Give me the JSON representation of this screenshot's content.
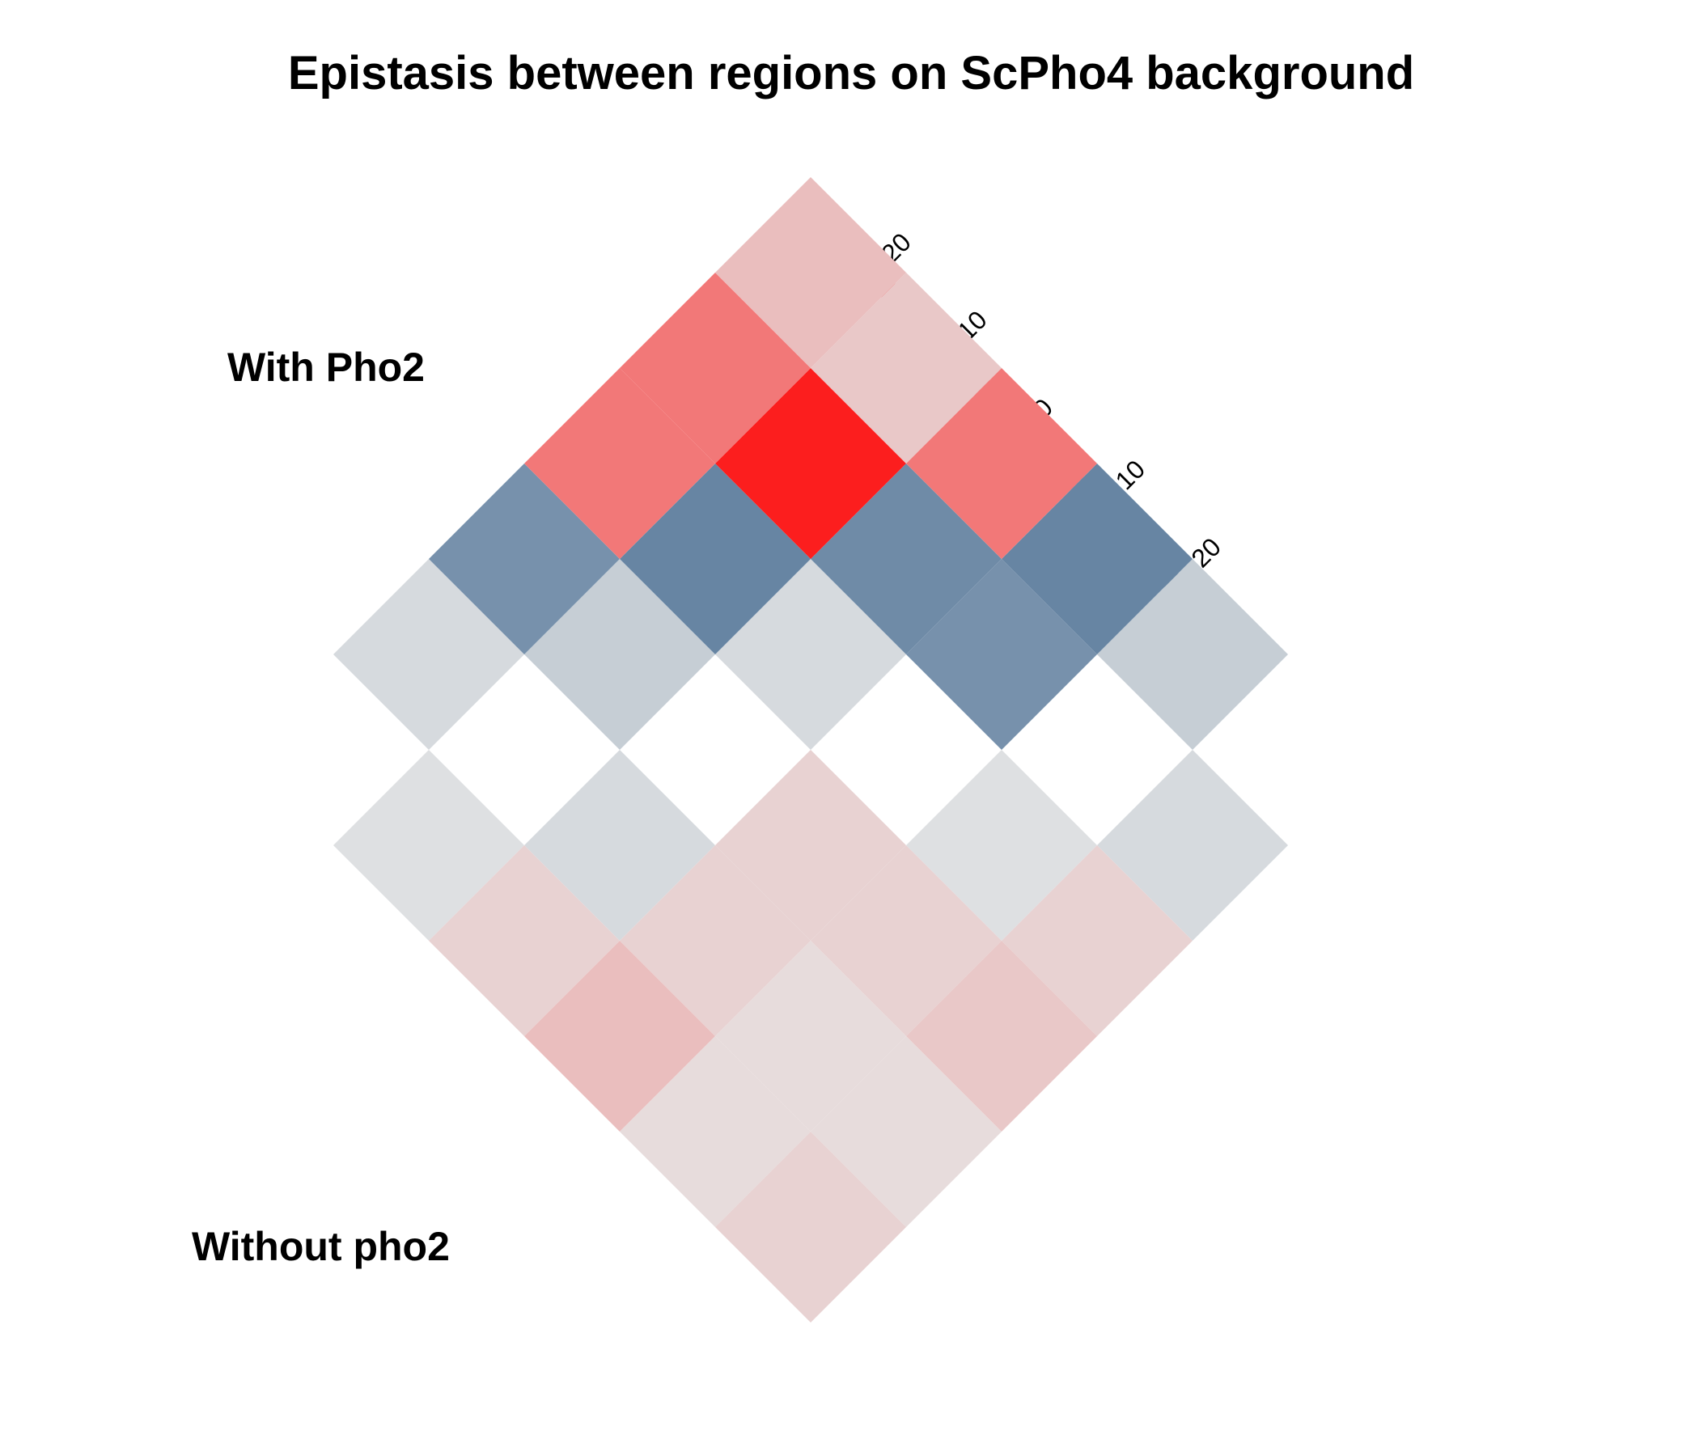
{
  "chart_data": {
    "type": "heatmap",
    "title": "Epistasis between regions on ScPho4 background",
    "layout": "two triangular heatmaps rotated 45 degrees, mirrored about a shared diagonal",
    "panels": [
      {
        "name": "With Pho2",
        "orientation": "up",
        "rows": [
          [
            -2,
            -4,
            -2,
            -14,
            -4
          ],
          [
            -14,
            -16,
            -15,
            -16
          ],
          [
            11,
            20,
            11
          ],
          [
            11,
            3
          ],
          [
            4
          ]
        ]
      },
      {
        "name": "Without pho2",
        "orientation": "down",
        "rows": [
          [
            -1,
            -2,
            2,
            -1,
            -2
          ],
          [
            2,
            2,
            2,
            2
          ],
          [
            4,
            1,
            3
          ],
          [
            1,
            1
          ],
          [
            2
          ]
        ]
      }
    ],
    "colorbar": {
      "range": [
        -23,
        23
      ],
      "ticks": [
        20,
        10,
        0,
        -10,
        -20
      ],
      "low_color": "#2f5b86",
      "mid_color": "#e6e6e6",
      "high_color": "#ff0000",
      "placement": "top-right, rotated 45 degrees"
    }
  }
}
